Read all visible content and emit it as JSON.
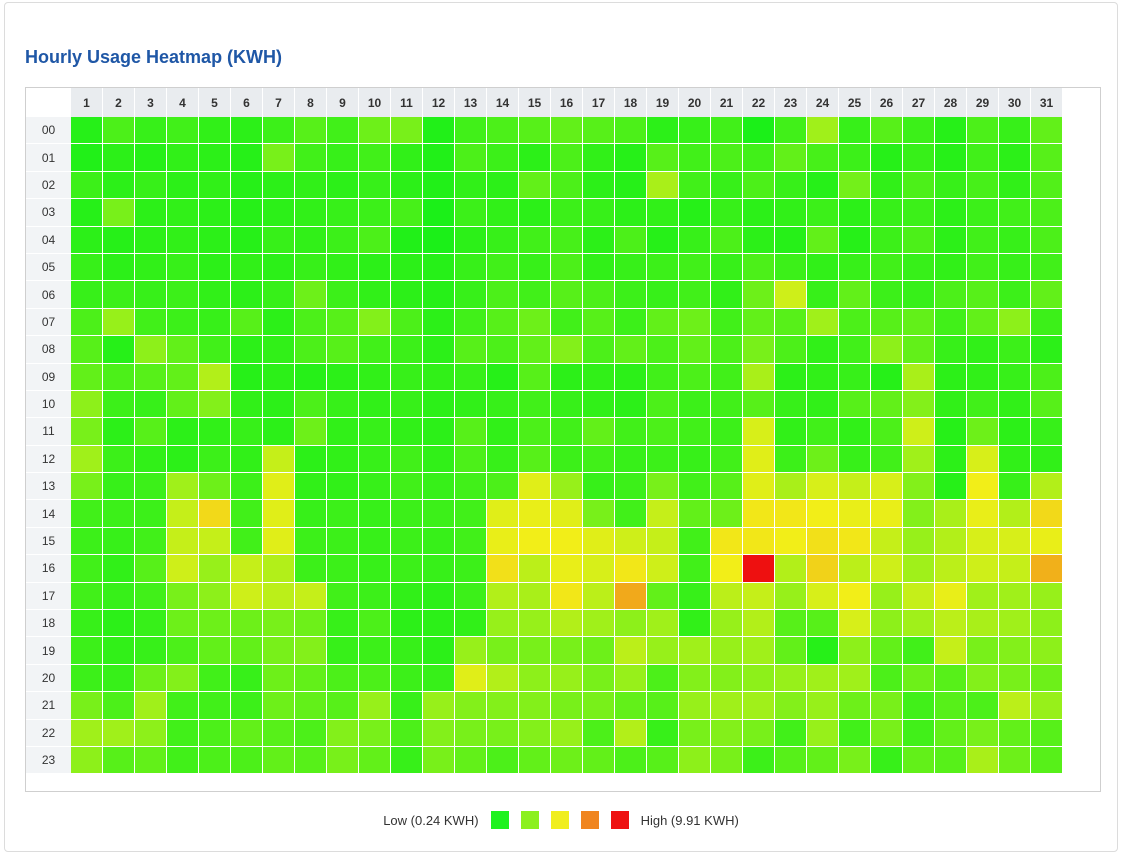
{
  "chart_data": {
    "type": "heatmap",
    "title": "Hourly Usage Heatmap (KWH)",
    "x_labels": [
      "1",
      "2",
      "3",
      "4",
      "5",
      "6",
      "7",
      "8",
      "9",
      "10",
      "11",
      "12",
      "13",
      "14",
      "15",
      "16",
      "17",
      "18",
      "19",
      "20",
      "21",
      "22",
      "23",
      "24",
      "25",
      "26",
      "27",
      "28",
      "29",
      "30",
      "31"
    ],
    "y_labels": [
      "00",
      "01",
      "02",
      "03",
      "04",
      "05",
      "06",
      "07",
      "08",
      "09",
      "10",
      "11",
      "12",
      "13",
      "14",
      "15",
      "16",
      "17",
      "18",
      "19",
      "20",
      "21",
      "22",
      "23"
    ],
    "min_value": 0.24,
    "max_value": 9.91,
    "legend": {
      "low_label": "Low (0.24 KWH)",
      "high_label": "High (9.91 KWH)",
      "swatches": [
        "#1ef21e",
        "#8cf01e",
        "#f0ee1e",
        "#f0851e",
        "#ee1111"
      ]
    },
    "color_stops": [
      {
        "t": 0.0,
        "color": "#18f018"
      },
      {
        "t": 0.22,
        "color": "#8cf01a"
      },
      {
        "t": 0.45,
        "color": "#f2ee18"
      },
      {
        "t": 0.75,
        "color": "#f08a1c"
      },
      {
        "t": 1.0,
        "color": "#ee1010"
      }
    ],
    "values": [
      [
        0.5,
        1.2,
        0.8,
        1.0,
        0.7,
        0.6,
        0.9,
        1.4,
        1.0,
        1.8,
        2.0,
        0.4,
        1.0,
        1.2,
        1.4,
        1.6,
        1.4,
        1.2,
        0.6,
        0.8,
        1.0,
        0.3,
        1.0,
        2.8,
        0.8,
        1.4,
        0.9,
        0.5,
        1.2,
        0.8,
        1.6
      ],
      [
        0.4,
        0.6,
        0.5,
        0.7,
        0.6,
        0.5,
        2.0,
        1.0,
        0.8,
        1.0,
        0.7,
        0.4,
        1.2,
        0.9,
        0.6,
        1.2,
        0.7,
        0.5,
        1.4,
        1.0,
        1.2,
        1.0,
        1.6,
        1.1,
        0.9,
        0.5,
        0.8,
        0.5,
        1.0,
        0.6,
        1.4
      ],
      [
        0.9,
        0.6,
        0.8,
        0.6,
        0.7,
        0.5,
        0.6,
        0.7,
        0.6,
        0.8,
        0.6,
        0.4,
        0.7,
        0.6,
        1.6,
        1.2,
        0.6,
        0.5,
        3.0,
        1.0,
        0.8,
        1.2,
        0.8,
        0.5,
        1.9,
        0.7,
        1.2,
        0.8,
        1.1,
        0.7,
        1.3
      ],
      [
        0.5,
        2.0,
        0.6,
        0.7,
        0.6,
        0.5,
        0.6,
        0.7,
        0.8,
        0.9,
        1.1,
        0.3,
        0.9,
        0.7,
        0.6,
        0.9,
        0.8,
        0.6,
        0.7,
        0.5,
        0.8,
        0.6,
        0.7,
        0.9,
        0.6,
        0.8,
        0.9,
        0.6,
        0.9,
        1.0,
        1.2
      ],
      [
        0.6,
        0.5,
        0.6,
        0.7,
        0.6,
        0.5,
        0.8,
        0.7,
        0.9,
        1.2,
        0.4,
        0.3,
        0.6,
        0.8,
        1.0,
        1.1,
        0.6,
        1.2,
        0.5,
        0.8,
        1.2,
        0.6,
        0.5,
        1.6,
        0.5,
        0.9,
        1.2,
        0.6,
        1.0,
        0.8,
        1.2
      ],
      [
        0.8,
        0.6,
        0.7,
        0.8,
        0.6,
        0.7,
        0.6,
        0.8,
        0.7,
        0.6,
        0.6,
        0.5,
        0.8,
        1.0,
        0.8,
        1.2,
        0.7,
        0.8,
        0.9,
        1.0,
        0.8,
        1.2,
        0.9,
        0.7,
        0.8,
        1.0,
        0.8,
        0.7,
        1.0,
        0.8,
        1.0
      ],
      [
        0.8,
        0.9,
        0.8,
        0.9,
        0.7,
        0.6,
        0.8,
        1.8,
        0.9,
        0.7,
        0.6,
        0.5,
        0.8,
        1.2,
        1.0,
        1.4,
        1.2,
        0.9,
        0.8,
        1.0,
        0.7,
        1.8,
        3.8,
        0.8,
        1.6,
        0.9,
        0.8,
        1.2,
        1.4,
        0.9,
        1.6
      ],
      [
        1.2,
        2.6,
        1.0,
        0.9,
        0.8,
        1.4,
        0.6,
        1.2,
        1.4,
        2.2,
        1.2,
        0.6,
        1.0,
        1.4,
        1.8,
        1.0,
        1.4,
        0.9,
        1.6,
        1.8,
        1.0,
        1.6,
        1.4,
        2.8,
        1.2,
        1.4,
        1.6,
        1.0,
        1.6,
        2.4,
        0.9
      ],
      [
        1.4,
        0.5,
        2.4,
        1.6,
        1.0,
        0.6,
        0.7,
        1.2,
        1.4,
        1.0,
        0.9,
        0.6,
        1.4,
        1.2,
        1.6,
        2.2,
        1.2,
        1.6,
        1.2,
        1.6,
        1.2,
        2.0,
        1.2,
        0.7,
        1.0,
        2.4,
        1.6,
        0.8,
        0.7,
        0.9,
        0.6
      ],
      [
        1.6,
        1.2,
        1.4,
        1.6,
        3.2,
        0.5,
        0.6,
        0.5,
        0.6,
        0.7,
        0.8,
        0.7,
        0.8,
        0.5,
        1.4,
        0.6,
        0.7,
        0.6,
        1.0,
        1.2,
        1.0,
        3.0,
        0.6,
        0.7,
        0.8,
        0.5,
        3.0,
        0.6,
        0.7,
        0.8,
        1.2
      ],
      [
        2.4,
        0.9,
        0.8,
        1.6,
        2.2,
        0.7,
        0.6,
        1.2,
        0.8,
        0.7,
        0.8,
        0.6,
        0.7,
        0.8,
        1.0,
        0.8,
        0.7,
        0.6,
        1.2,
        0.9,
        1.0,
        1.4,
        0.8,
        0.7,
        1.4,
        1.6,
        2.2,
        0.7,
        1.0,
        0.7,
        1.4
      ],
      [
        2.0,
        0.6,
        1.4,
        0.6,
        0.7,
        0.8,
        0.6,
        1.8,
        0.7,
        0.8,
        0.7,
        0.6,
        1.4,
        0.7,
        1.2,
        1.0,
        1.6,
        1.0,
        1.2,
        1.0,
        0.9,
        4.0,
        0.7,
        1.0,
        0.7,
        1.2,
        3.8,
        0.5,
        1.8,
        0.6,
        0.8
      ],
      [
        2.8,
        0.9,
        0.7,
        0.6,
        0.9,
        0.7,
        3.6,
        0.6,
        0.7,
        0.8,
        1.0,
        0.7,
        1.2,
        0.8,
        1.4,
        0.9,
        1.0,
        0.8,
        0.9,
        0.8,
        1.0,
        4.2,
        0.9,
        1.8,
        0.8,
        1.0,
        2.8,
        0.6,
        4.0,
        0.7,
        0.7
      ],
      [
        2.0,
        0.8,
        0.9,
        2.8,
        1.8,
        0.9,
        4.2,
        0.7,
        0.7,
        0.8,
        1.0,
        0.8,
        1.0,
        1.2,
        4.2,
        2.6,
        0.8,
        0.9,
        2.0,
        1.0,
        1.4,
        4.2,
        3.0,
        4.0,
        3.6,
        4.0,
        2.2,
        0.5,
        4.6,
        0.8,
        3.2
      ],
      [
        1.0,
        0.9,
        0.9,
        3.6,
        5.2,
        1.0,
        4.2,
        0.8,
        0.9,
        0.8,
        0.9,
        0.9,
        1.0,
        4.2,
        4.4,
        4.2,
        2.0,
        1.0,
        3.6,
        1.6,
        1.8,
        4.8,
        4.8,
        4.6,
        4.4,
        4.4,
        2.2,
        3.0,
        4.4,
        3.2,
        5.2
      ],
      [
        0.9,
        0.8,
        1.0,
        3.6,
        3.6,
        1.0,
        4.2,
        0.9,
        0.9,
        0.8,
        0.9,
        0.8,
        1.0,
        4.4,
        4.6,
        4.6,
        4.2,
        3.8,
        3.6,
        1.0,
        4.8,
        4.8,
        4.6,
        5.0,
        4.8,
        3.6,
        2.6,
        3.2,
        4.0,
        4.0,
        4.4
      ],
      [
        1.0,
        0.7,
        1.4,
        3.8,
        2.6,
        3.6,
        3.2,
        0.9,
        0.9,
        0.8,
        0.9,
        0.8,
        0.9,
        5.0,
        3.4,
        4.4,
        4.0,
        4.8,
        3.8,
        1.0,
        4.6,
        9.91,
        3.2,
        5.4,
        3.4,
        3.8,
        2.8,
        3.4,
        3.8,
        3.6,
        6.4
      ],
      [
        1.0,
        0.8,
        1.0,
        2.0,
        2.4,
        3.8,
        3.4,
        3.6,
        1.0,
        0.9,
        0.7,
        0.6,
        0.9,
        3.2,
        3.0,
        4.8,
        3.4,
        6.6,
        1.6,
        0.8,
        3.4,
        3.6,
        2.6,
        4.0,
        4.6,
        2.6,
        3.6,
        4.4,
        2.8,
        2.8,
        2.6
      ],
      [
        0.8,
        0.6,
        0.8,
        1.8,
        1.8,
        1.8,
        2.0,
        1.8,
        0.8,
        1.2,
        0.6,
        0.6,
        0.7,
        2.6,
        2.6,
        3.2,
        2.8,
        2.4,
        2.8,
        0.7,
        2.6,
        3.2,
        1.4,
        1.4,
        4.0,
        2.4,
        2.8,
        3.4,
        3.0,
        2.8,
        2.4
      ],
      [
        0.9,
        0.7,
        0.8,
        1.2,
        1.6,
        1.6,
        2.0,
        2.2,
        0.8,
        0.9,
        0.8,
        0.6,
        2.6,
        2.0,
        2.0,
        2.0,
        1.8,
        3.4,
        2.6,
        2.8,
        2.6,
        2.8,
        1.6,
        0.5,
        2.4,
        1.6,
        1.0,
        3.6,
        2.0,
        2.2,
        2.4
      ],
      [
        0.9,
        0.8,
        1.8,
        2.2,
        1.0,
        0.8,
        1.8,
        1.6,
        1.2,
        1.2,
        0.9,
        0.8,
        4.2,
        3.2,
        2.4,
        2.6,
        2.0,
        2.6,
        1.2,
        2.2,
        2.2,
        2.4,
        2.6,
        2.8,
        2.8,
        1.2,
        1.8,
        1.4,
        2.2,
        2.0,
        1.8
      ],
      [
        2.0,
        1.2,
        2.8,
        1.0,
        1.0,
        0.9,
        1.8,
        1.6,
        1.4,
        2.6,
        0.8,
        2.6,
        2.2,
        2.2,
        2.2,
        2.0,
        2.0,
        1.6,
        1.4,
        2.6,
        2.8,
        2.8,
        2.2,
        2.6,
        1.8,
        2.0,
        1.0,
        1.4,
        1.2,
        3.4,
        2.6
      ],
      [
        2.8,
        2.8,
        2.4,
        1.0,
        1.2,
        1.6,
        1.4,
        1.2,
        2.2,
        2.0,
        1.2,
        2.2,
        2.0,
        2.0,
        2.2,
        2.6,
        1.2,
        3.2,
        0.8,
        2.0,
        2.2,
        2.0,
        1.0,
        2.6,
        1.0,
        2.0,
        1.0,
        1.6,
        2.0,
        1.6,
        1.4
      ],
      [
        2.4,
        1.4,
        1.6,
        1.0,
        1.2,
        1.2,
        1.6,
        1.4,
        2.0,
        1.6,
        0.8,
        2.0,
        1.6,
        1.2,
        1.6,
        1.8,
        1.6,
        1.2,
        1.4,
        2.4,
        2.0,
        0.9,
        1.4,
        1.6,
        2.0,
        0.8,
        1.6,
        1.4,
        3.0,
        1.8,
        1.4
      ]
    ]
  }
}
